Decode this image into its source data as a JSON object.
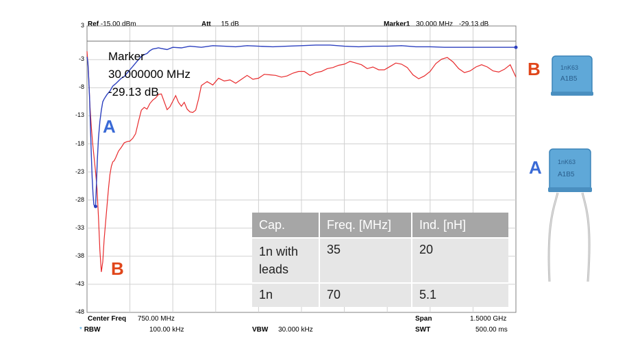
{
  "header": {
    "ref_label": "Ref",
    "ref_value": "-15.00 dBm",
    "att_label": "Att",
    "att_value": "15 dB",
    "marker1_label": "Marker1",
    "marker1_freq": "30.000 MHz",
    "marker1_value": "-29.13 dB"
  },
  "footer": {
    "center_freq_label": "Center Freq",
    "center_freq_value": "750.00 MHz",
    "span_label": "Span",
    "span_value": "1.5000 GHz",
    "rbw_star": "*",
    "rbw_label": "RBW",
    "rbw_value": "100.00 kHz",
    "vbw_label": "VBW",
    "vbw_value": "30.000 kHz",
    "swt_label": "SWT",
    "swt_value": "500.00 ms"
  },
  "marker_box": {
    "title": "Marker",
    "freq": "30.000000 MHz",
    "value": "-29.13 dB"
  },
  "labels": {
    "a_curve": "A",
    "b_curve": "B",
    "b_photo": "B",
    "a_photo": "A"
  },
  "photo_text": {
    "b_top": "1nK63",
    "b_bottom": "A1B5",
    "a_top": "1nK63",
    "a_bottom": "A1B5"
  },
  "table": {
    "headers": [
      "Cap.",
      "Freq. [MHz]",
      "Ind. [nH]"
    ],
    "rows": [
      [
        "1n with leads",
        "35",
        "20"
      ],
      [
        "1n",
        "70",
        "5.1"
      ]
    ]
  },
  "colors": {
    "trace_a": "#2b3fbf",
    "trace_b": "#e8292b",
    "label_a": "#3a6ad6",
    "label_b": "#e0461a",
    "grid": "#d0d0d0"
  },
  "chart_data": {
    "type": "line",
    "xlabel": "",
    "ylabel": "",
    "xlim": [
      0,
      1500
    ],
    "ylim": [
      -48,
      3
    ],
    "y_ticks": [
      3,
      -3,
      -8,
      -13,
      -18,
      -23,
      -28,
      -33,
      -38,
      -43,
      -48
    ],
    "series": [
      {
        "name": "A",
        "x": [
          0,
          3,
          6,
          9,
          12,
          15,
          18,
          21,
          24,
          27,
          30,
          33,
          36,
          40,
          45,
          50,
          55,
          60,
          70,
          80,
          90,
          100,
          110,
          120,
          130,
          140,
          150,
          160,
          170,
          180,
          190,
          200,
          210,
          220,
          230,
          240,
          250,
          260,
          280,
          300,
          330,
          360,
          400,
          440,
          480,
          520,
          560,
          600,
          650,
          700,
          750,
          800,
          850,
          900,
          950,
          1000,
          1050,
          1100,
          1150,
          1200,
          1250,
          1300,
          1350,
          1400,
          1450,
          1500
        ],
        "y": [
          -2.5,
          -3.5,
          -6.5,
          -10,
          -15,
          -20,
          -24,
          -27,
          -28.8,
          -29.2,
          -29.1,
          -25,
          -21,
          -17,
          -14,
          -12,
          -10.5,
          -10,
          -9.2,
          -8.6,
          -7.7,
          -7.3,
          -6.8,
          -6.3,
          -6,
          -5.4,
          -4.8,
          -4.2,
          -3.6,
          -3,
          -2.4,
          -2.1,
          -1.9,
          -1.4,
          -1.1,
          -1.0,
          -0.9,
          -1.0,
          -1.2,
          -0.8,
          -0.9,
          -0.6,
          -0.8,
          -0.5,
          -0.6,
          -0.7,
          -0.5,
          -0.6,
          -0.7,
          -0.6,
          -0.5,
          -0.4,
          -0.4,
          -0.6,
          -0.7,
          -0.6,
          -0.6,
          -0.5,
          -0.7,
          -0.7,
          -0.8,
          -0.8,
          -0.8,
          -0.8,
          -0.8,
          -0.8
        ]
      },
      {
        "name": "B",
        "x": [
          0,
          5,
          10,
          15,
          20,
          25,
          30,
          35,
          40,
          45,
          50,
          55,
          60,
          65,
          70,
          75,
          80,
          85,
          90,
          95,
          100,
          110,
          120,
          130,
          140,
          150,
          160,
          170,
          180,
          190,
          200,
          210,
          220,
          230,
          240,
          250,
          260,
          270,
          280,
          290,
          300,
          310,
          320,
          330,
          340,
          350,
          360,
          370,
          380,
          390,
          400,
          420,
          440,
          460,
          480,
          500,
          520,
          540,
          560,
          580,
          600,
          620,
          640,
          660,
          680,
          700,
          720,
          740,
          760,
          780,
          800,
          820,
          840,
          860,
          880,
          900,
          920,
          940,
          960,
          980,
          1000,
          1020,
          1040,
          1060,
          1080,
          1100,
          1120,
          1140,
          1160,
          1180,
          1200,
          1220,
          1240,
          1260,
          1280,
          1300,
          1320,
          1340,
          1360,
          1380,
          1400,
          1420,
          1440,
          1460,
          1480,
          1500
        ],
        "y": [
          -1.5,
          -5,
          -11,
          -15,
          -18,
          -20.5,
          -23,
          -26,
          -31,
          -37,
          -40.8,
          -39,
          -35,
          -32,
          -29,
          -26,
          -23.5,
          -22,
          -21.2,
          -21,
          -20.5,
          -19.3,
          -18.6,
          -17.8,
          -17.6,
          -17.5,
          -17,
          -16.2,
          -14,
          -12,
          -11.5,
          -11.8,
          -10.8,
          -10.2,
          -9.8,
          -9.2,
          -9.1,
          -10.5,
          -11.9,
          -11.4,
          -10.4,
          -9.4,
          -10.6,
          -11.3,
          -10.6,
          -11.8,
          -12.3,
          -12.4,
          -12,
          -10,
          -7.6,
          -6.9,
          -7.5,
          -6.3,
          -6.8,
          -6.6,
          -7.2,
          -6.5,
          -5.8,
          -6.5,
          -6.3,
          -5.6,
          -5.7,
          -5.8,
          -6.1,
          -5.9,
          -5.4,
          -5.1,
          -5.1,
          -5.8,
          -5.3,
          -5.1,
          -4.6,
          -4.4,
          -4.0,
          -3.8,
          -3.3,
          -3.6,
          -3.9,
          -4.6,
          -4.3,
          -4.8,
          -4.8,
          -4.2,
          -3.6,
          -3.8,
          -4.4,
          -5.7,
          -6.4,
          -5.9,
          -5.1,
          -3.7,
          -2.9,
          -2.6,
          -3.4,
          -4.6,
          -5.3,
          -5.0,
          -4.3,
          -3.9,
          -4.3,
          -5.0,
          -5.2,
          -4.7,
          -3.9,
          -6.1
        ]
      }
    ],
    "markers": [
      {
        "x": 30,
        "y": -29.13
      }
    ]
  }
}
